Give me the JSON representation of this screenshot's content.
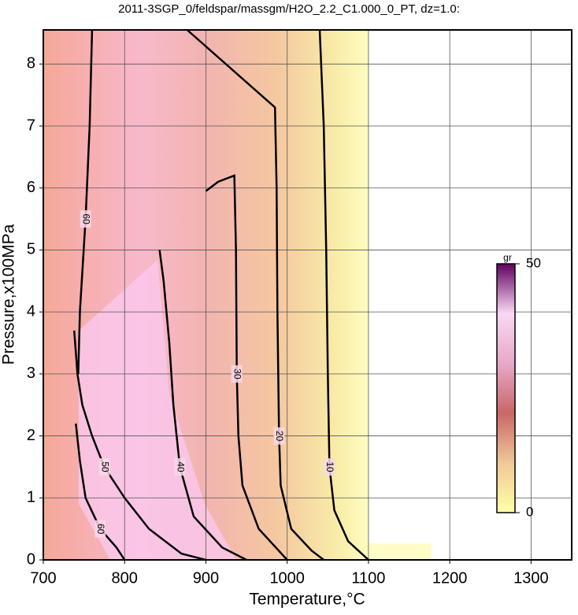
{
  "chart_data": {
    "type": "contour",
    "title": "2011-3SGP_0/feldspar/massgm/H2O_2.2_C1.000_0_PT, dz=1.0:",
    "x_label": "Temperature,°C",
    "y_label": "Pressure,x100MPa",
    "xlim": [
      700,
      1350
    ],
    "ylim": [
      0,
      8.55
    ],
    "xticks": [
      700,
      800,
      900,
      1000,
      1100,
      1200,
      1300
    ],
    "yticks": [
      0,
      1,
      2,
      3,
      4,
      5,
      6,
      7,
      8
    ],
    "grid": true,
    "line_color": "#000000",
    "contours": [
      {
        "level": 10,
        "x": [
          1040,
          1045,
          1048,
          1050,
          1052,
          1058,
          1075,
          1100
        ],
        "y": [
          8.55,
          7,
          5,
          3,
          1.5,
          0.8,
          0.3,
          0
        ]
      },
      {
        "level": 20,
        "x": [
          877,
          985,
          987,
          988,
          990,
          992,
          1005,
          1030,
          1045
        ],
        "y": [
          8.55,
          7.3,
          6,
          4,
          2,
          1.2,
          0.5,
          0.15,
          0
        ]
      },
      {
        "level": 30,
        "x": [
          900,
          915,
          935,
          937,
          938,
          940,
          945,
          965,
          1000
        ],
        "y": [
          5.95,
          6.1,
          6.2,
          5,
          3,
          2,
          1.2,
          0.5,
          0
        ]
      },
      {
        "level": 40,
        "x": [
          843,
          848,
          855,
          860,
          868,
          885,
          920,
          950
        ],
        "y": [
          5.0,
          4.5,
          3.5,
          2.5,
          1.5,
          0.7,
          0.2,
          0
        ]
      },
      {
        "level": 50,
        "x": [
          738,
          742,
          748,
          760,
          775,
          800,
          830,
          870,
          900
        ],
        "y": [
          3.7,
          3,
          2.5,
          2.0,
          1.5,
          1.0,
          0.5,
          0.1,
          0
        ]
      },
      {
        "level": 60,
        "x": [
          740,
          745,
          752,
          770,
          790,
          800
        ],
        "y": [
          2.2,
          1.6,
          1.0,
          0.5,
          0.2,
          0
        ]
      },
      {
        "level": 60,
        "x": [
          760,
          757,
          752,
          745,
          743
        ],
        "y": [
          8.55,
          7,
          5.5,
          4,
          3
        ]
      }
    ],
    "colorbar": {
      "label": "gr",
      "lim": [
        0,
        50
      ],
      "ticks": [
        0,
        50
      ],
      "colors": [
        "#ffffa8",
        "#f0c898",
        "#c86868",
        "#e8a8c8",
        "#fad8f4",
        "#600060"
      ]
    }
  }
}
